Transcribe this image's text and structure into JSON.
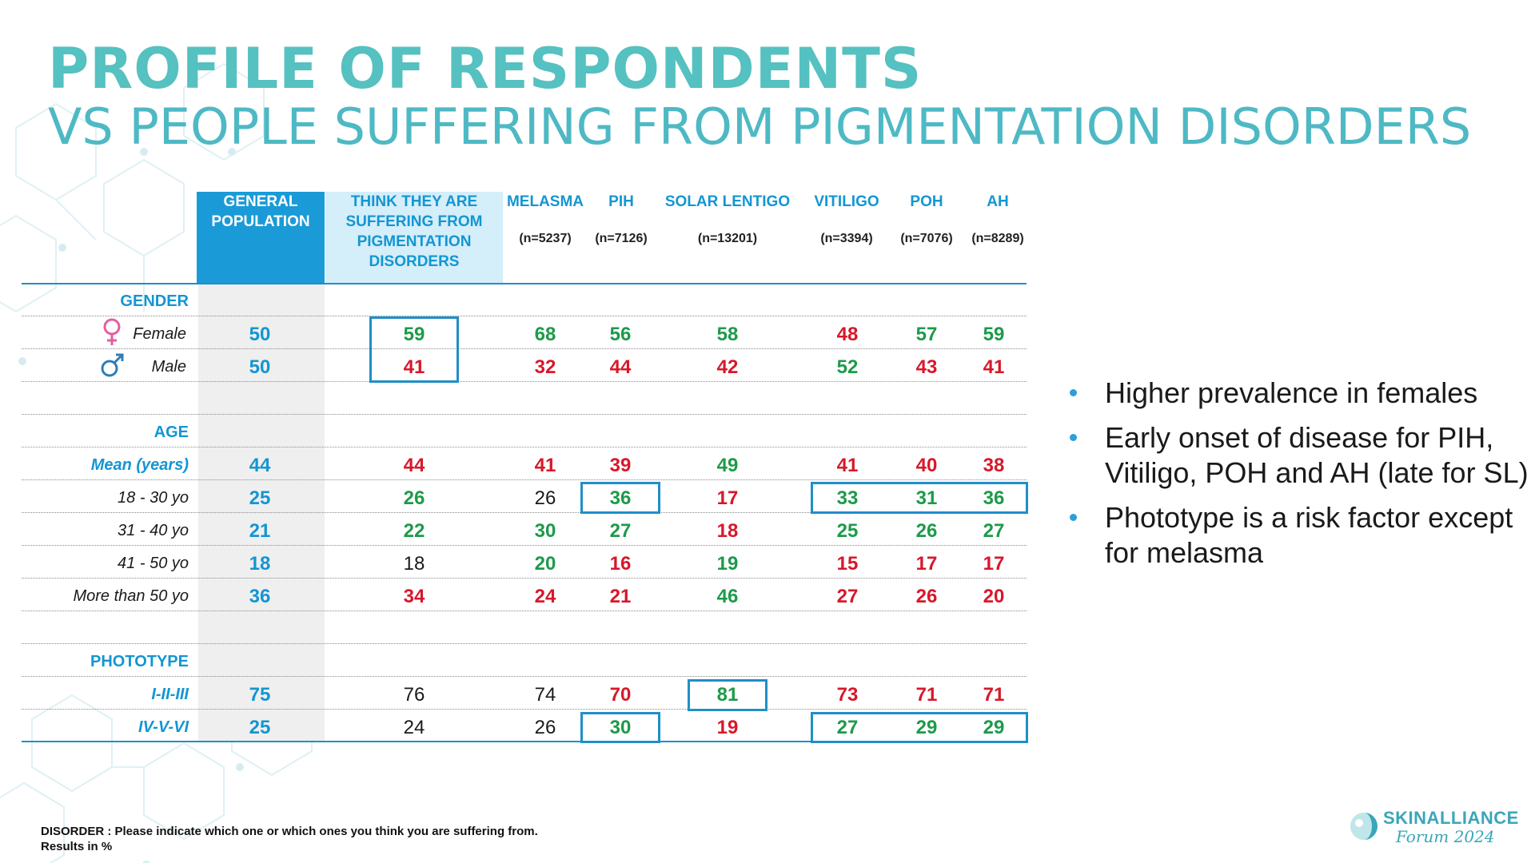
{
  "title": {
    "line1": "PROFILE OF RESPONDENTS",
    "line2": "VS PEOPLE SUFFERING FROM PIGMENTATION DISORDERS"
  },
  "colors": {
    "accent": "#1396d2",
    "green": "#1d9a4a",
    "red": "#d7182a",
    "title_teal": "#55c1c0",
    "general_header_bg": "#1a9bd7",
    "think_header_bg": "#d4eefa",
    "general_column_bg": "#efefef"
  },
  "table": {
    "columns": [
      {
        "label": "GENERAL POPULATION",
        "n": ""
      },
      {
        "label": "THINK THEY ARE SUFFERING FROM PIGMENTATION DISORDERS",
        "n": ""
      },
      {
        "label": "MELASMA",
        "n": "(n=5237)"
      },
      {
        "label": "PIH",
        "n": "(n=7126)"
      },
      {
        "label": "SOLAR LENTIGO",
        "n": "(n=13201)"
      },
      {
        "label": "VITILIGO",
        "n": "(n=3394)"
      },
      {
        "label": "POH",
        "n": "(n=7076)"
      },
      {
        "label": "AH",
        "n": "(n=8289)"
      }
    ],
    "sections": {
      "gender": "GENDER",
      "age": "AGE",
      "phototype": "PHOTOTYPE"
    },
    "rows": {
      "female": {
        "label": "Female",
        "icon": "female-symbol-icon",
        "values": [
          "50",
          "59",
          "68",
          "56",
          "58",
          "48",
          "57",
          "59"
        ],
        "colors": [
          "blue",
          "green",
          "green",
          "green",
          "green",
          "red",
          "green",
          "green"
        ]
      },
      "male": {
        "label": "Male",
        "icon": "male-symbol-icon",
        "values": [
          "50",
          "41",
          "32",
          "44",
          "42",
          "52",
          "43",
          "41"
        ],
        "colors": [
          "blue",
          "red",
          "red",
          "red",
          "red",
          "green",
          "red",
          "red"
        ]
      },
      "mean": {
        "label": "Mean (years)",
        "values": [
          "44",
          "44",
          "41",
          "39",
          "49",
          "41",
          "40",
          "38"
        ],
        "colors": [
          "blue",
          "red",
          "red",
          "red",
          "green",
          "red",
          "red",
          "red"
        ]
      },
      "age18": {
        "label": "18 - 30 yo",
        "values": [
          "25",
          "26",
          "26",
          "36",
          "17",
          "33",
          "31",
          "36"
        ],
        "colors": [
          "blue",
          "green",
          "black",
          "green",
          "red",
          "green",
          "green",
          "green"
        ]
      },
      "age31": {
        "label": "31 - 40 yo",
        "values": [
          "21",
          "22",
          "30",
          "27",
          "18",
          "25",
          "26",
          "27"
        ],
        "colors": [
          "blue",
          "green",
          "green",
          "green",
          "red",
          "green",
          "green",
          "green"
        ]
      },
      "age41": {
        "label": "41 - 50 yo",
        "values": [
          "18",
          "18",
          "20",
          "16",
          "19",
          "15",
          "17",
          "17"
        ],
        "colors": [
          "blue",
          "black",
          "green",
          "red",
          "green",
          "red",
          "red",
          "red"
        ]
      },
      "age50": {
        "label": "More than 50 yo",
        "values": [
          "36",
          "34",
          "24",
          "21",
          "46",
          "27",
          "26",
          "20"
        ],
        "colors": [
          "blue",
          "red",
          "red",
          "red",
          "green",
          "red",
          "red",
          "red"
        ]
      },
      "pt1": {
        "label": "I-II-III",
        "values": [
          "75",
          "76",
          "74",
          "70",
          "81",
          "73",
          "71",
          "71"
        ],
        "colors": [
          "blue",
          "black",
          "black",
          "red",
          "green",
          "red",
          "red",
          "red"
        ]
      },
      "pt2": {
        "label": "IV-V-VI",
        "values": [
          "25",
          "24",
          "26",
          "30",
          "19",
          "27",
          "29",
          "29"
        ],
        "colors": [
          "blue",
          "black",
          "black",
          "green",
          "red",
          "green",
          "green",
          "green"
        ]
      }
    }
  },
  "bullets": [
    "Higher prevalence in females",
    "Early onset of disease for PIH, Vitiligo, POH and AH (late for SL)",
    "Phototype is a risk factor except for melasma"
  ],
  "footnote": {
    "line1": "DISORDER : Please indicate which one or which ones you think you are suffering from.",
    "line2": "Results in %"
  },
  "logo": {
    "name": "SKINALLIANCE",
    "sub": "Forum 2024"
  }
}
